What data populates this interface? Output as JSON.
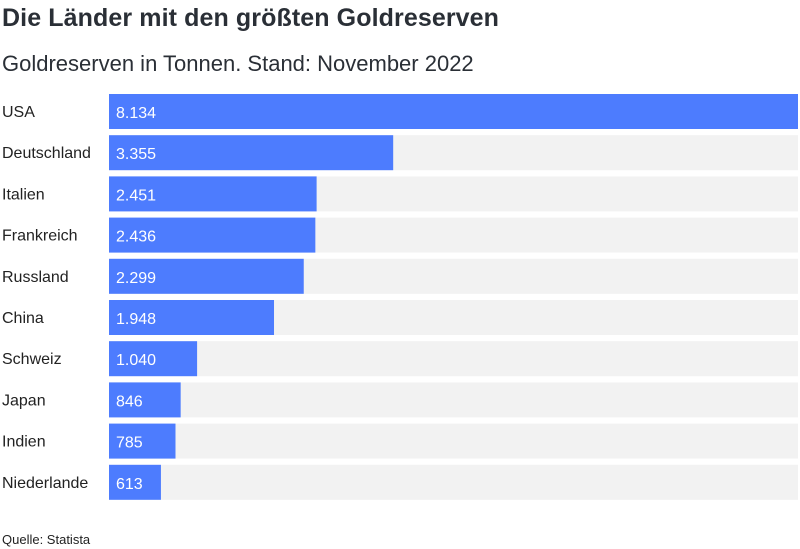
{
  "colors": {
    "bar": "#4d7cfe",
    "track": "#f2f2f2",
    "title": "#2a2f36"
  },
  "source": "Quelle: Statista",
  "chart_data": {
    "type": "bar",
    "orientation": "horizontal",
    "title": "Die Länder mit den größten Goldreserven",
    "subtitle": "Goldreserven in Tonnen. Stand: November 2022",
    "categories": [
      "USA",
      "Deutschland",
      "Italien",
      "Frankreich",
      "Russland",
      "China",
      "Schweiz",
      "Japan",
      "Indien",
      "Niederlande"
    ],
    "values": [
      8134,
      3355,
      2451,
      2436,
      2299,
      1948,
      1040,
      846,
      785,
      613
    ],
    "value_labels": [
      "8.134",
      "3.355",
      "2.451",
      "2.436",
      "2.299",
      "1.948",
      "1.040",
      "846",
      "785",
      "613"
    ],
    "xlim": [
      0,
      8134
    ],
    "grid": false,
    "legend": "none"
  }
}
